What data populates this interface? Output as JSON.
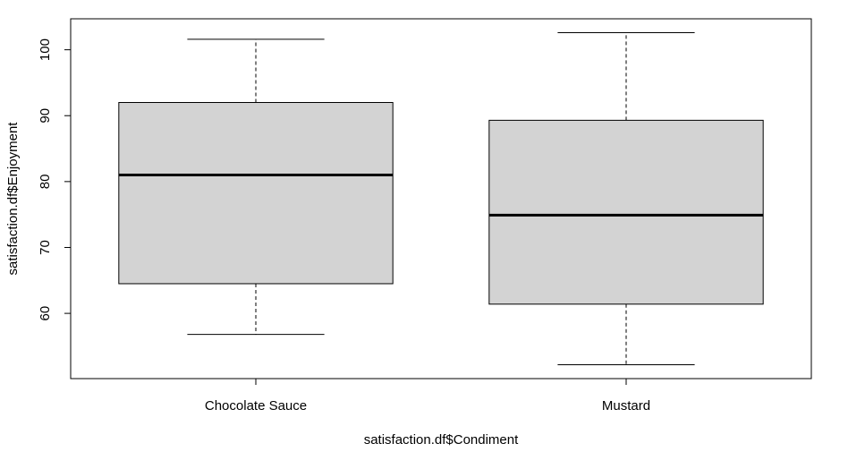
{
  "chart_data": {
    "type": "boxplot",
    "xlabel": "satisfaction.df$Condiment",
    "ylabel": "satisfaction.df$Enjoyment",
    "categories": [
      "Chocolate Sauce",
      "Mustard"
    ],
    "boxes": [
      {
        "category": "Chocolate Sauce",
        "whisker_low": 56.8,
        "q1": 64.5,
        "median": 81.0,
        "q3": 92.0,
        "whisker_high": 101.6
      },
      {
        "category": "Mustard",
        "whisker_low": 52.2,
        "q1": 61.4,
        "median": 74.9,
        "q3": 89.3,
        "whisker_high": 102.6
      }
    ],
    "yticks": [
      60,
      70,
      80,
      90,
      100
    ],
    "ylim": [
      50.1,
      104.7
    ],
    "grid": false,
    "legend": "none",
    "colors": {
      "box_fill": "#d3d3d3",
      "stroke": "#000000",
      "background": "#ffffff"
    }
  }
}
